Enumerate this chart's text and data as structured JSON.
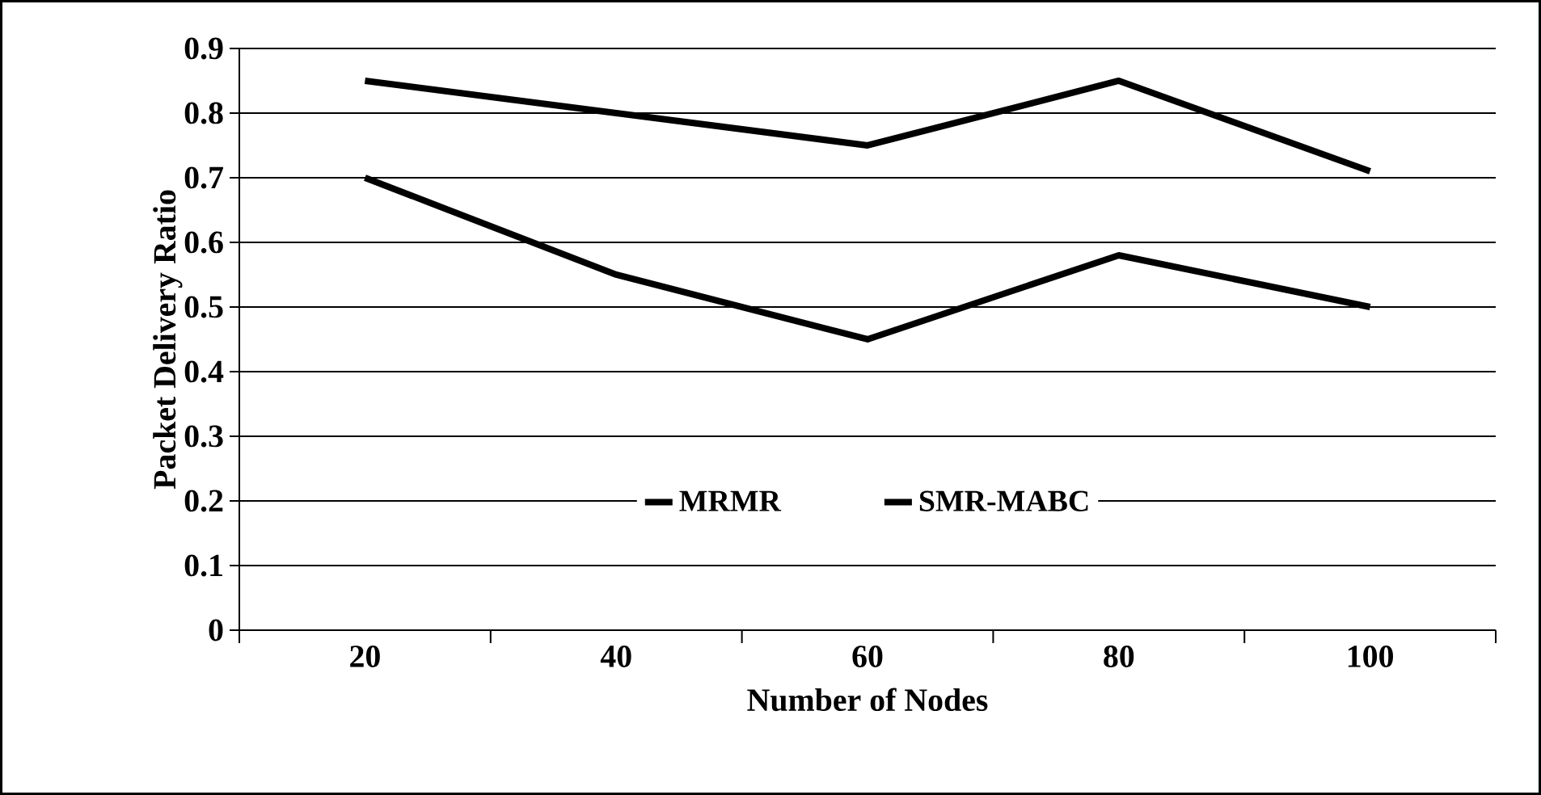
{
  "chart_data": {
    "type": "line",
    "xlabel": "Number of Nodes",
    "ylabel": "Packet Delivery Ratio",
    "categories": [
      "20",
      "40",
      "60",
      "80",
      "100"
    ],
    "series": [
      {
        "name": "MRMR",
        "color": "#000000",
        "values": [
          0.7,
          0.55,
          0.45,
          0.58,
          0.5
        ]
      },
      {
        "name": "SMR-MABC",
        "color": "#000000",
        "values": [
          0.85,
          0.8,
          0.75,
          0.85,
          0.71
        ]
      }
    ],
    "ylim": [
      0,
      0.9
    ],
    "yticks": [
      0,
      0.1,
      0.2,
      0.3,
      0.4,
      0.5,
      0.6,
      0.7,
      0.8,
      0.9
    ],
    "grid": "y",
    "legend": "bottom",
    "marker": "none",
    "line_style": "solid"
  }
}
